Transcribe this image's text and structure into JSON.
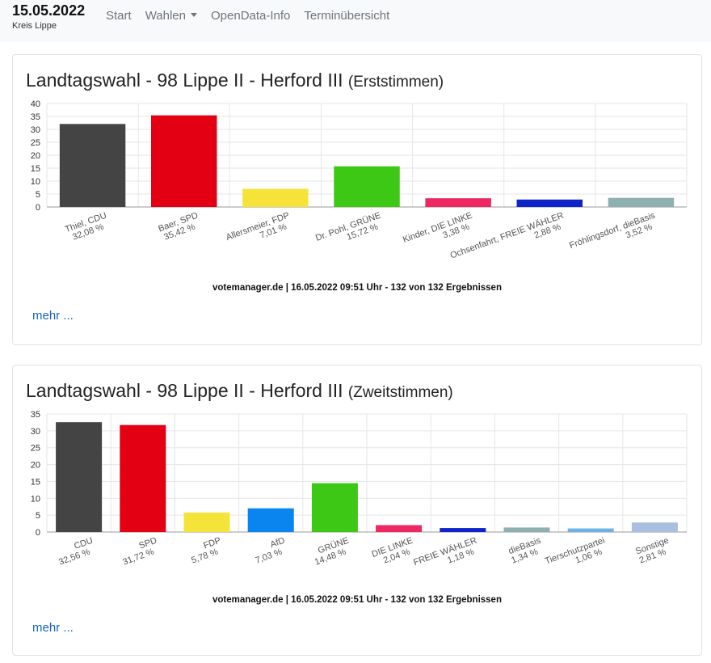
{
  "header": {
    "date": "15.05.2022",
    "district": "Kreis Lippe",
    "nav": [
      {
        "label": "Start"
      },
      {
        "label": "Wahlen",
        "dropdown": true
      },
      {
        "label": "OpenData-Info"
      },
      {
        "label": "Terminübersicht"
      }
    ]
  },
  "cards": [
    {
      "title": "Landtagswahl - 98 Lippe II - Herford III",
      "subtitle": "(Erststimmen)",
      "source": "votemanager.de | 16.05.2022 09:51 Uhr - 132 von 132 Ergebnissen",
      "more": "mehr ..."
    },
    {
      "title": "Landtagswahl - 98 Lippe II - Herford III",
      "subtitle": "(Zweitstimmen)",
      "source": "votemanager.de | 16.05.2022 09:51 Uhr - 132 von 132 Ergebnissen",
      "more": "mehr ..."
    }
  ],
  "chart_data": [
    {
      "type": "bar",
      "ylim": [
        0,
        40
      ],
      "yticks": [
        "0",
        "5",
        "10",
        "15",
        "20",
        "25",
        "30",
        "35",
        "40"
      ],
      "grid": true,
      "categories": [
        "Thiel, CDU",
        "Baer, SPD",
        "Allersmeier, FDP",
        "Dr. Pohl, GRÜNE",
        "Kinder, DIE LINKE",
        "Ochsenfahrt, FREIE WÄHLER",
        "Fröhlingsdorf, dieBasis"
      ],
      "values": [
        32.08,
        35.42,
        7.01,
        15.72,
        3.38,
        2.88,
        3.52
      ],
      "value_labels": [
        "32,08 %",
        "35,42 %",
        "7,01 %",
        "15,72 %",
        "3,38 %",
        "2,88 %",
        "3,52 %"
      ],
      "colors": [
        "#444444",
        "#e30013",
        "#f6e33a",
        "#3cc814",
        "#ee2862",
        "#0e23c8",
        "#8fb0b1"
      ]
    },
    {
      "type": "bar",
      "ylim": [
        0,
        35
      ],
      "yticks": [
        "0",
        "5",
        "10",
        "15",
        "20",
        "25",
        "30",
        "35"
      ],
      "grid": true,
      "categories": [
        "CDU",
        "SPD",
        "FDP",
        "AfD",
        "GRÜNE",
        "DIE LINKE",
        "FREIE WÄHLER",
        "dieBasis",
        "Tierschutzpartei",
        "Sonstige"
      ],
      "values": [
        32.56,
        31.72,
        5.78,
        7.03,
        14.48,
        2.04,
        1.18,
        1.34,
        1.06,
        2.81
      ],
      "value_labels": [
        "32,56 %",
        "31,72 %",
        "5,78 %",
        "7,03 %",
        "14,48 %",
        "2,04 %",
        "1,18 %",
        "1,34 %",
        "1,06 %",
        "2,81 %"
      ],
      "colors": [
        "#444444",
        "#e30013",
        "#f6e33a",
        "#0a84ef",
        "#3cc814",
        "#ee2862",
        "#0e23c8",
        "#8fb0b1",
        "#6eb2e6",
        "#a9bfe0"
      ]
    }
  ]
}
